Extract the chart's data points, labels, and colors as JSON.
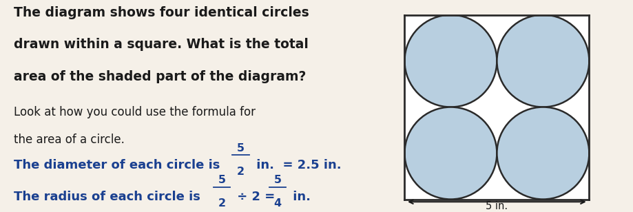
{
  "bg_color": "#f5f0e8",
  "text_color_black": "#1a1a1a",
  "text_color_blue": "#1a4090",
  "circle_fill": "#b8cfe0",
  "circle_edge": "#2a2a2a",
  "square_edge": "#2a2a2a",
  "square_bg": "#ffffff",
  "line1": "The diagram shows four identical circles",
  "line2": "drawn within a square. What is the total",
  "line3": "area of the shaded part of the diagram?",
  "line4": "Look at how you could use the formula for",
  "line5": "the area of a circle.",
  "diam_prefix": "The diameter of each circle is ",
  "diam_frac_num": "5",
  "diam_frac_den": "2",
  "diam_suffix": " in.  = 2.5 in.",
  "rad_prefix": "The radius of each circle is ",
  "rad_frac_num": "5",
  "rad_frac_den": "2",
  "rad_mid": " ÷ 2 = ",
  "rad_frac2_num": "5",
  "rad_frac2_den": "4",
  "rad_suffix": " in.",
  "dim_label": "5 in.",
  "figsize": [
    9.19,
    3.08
  ],
  "dpi": 100
}
